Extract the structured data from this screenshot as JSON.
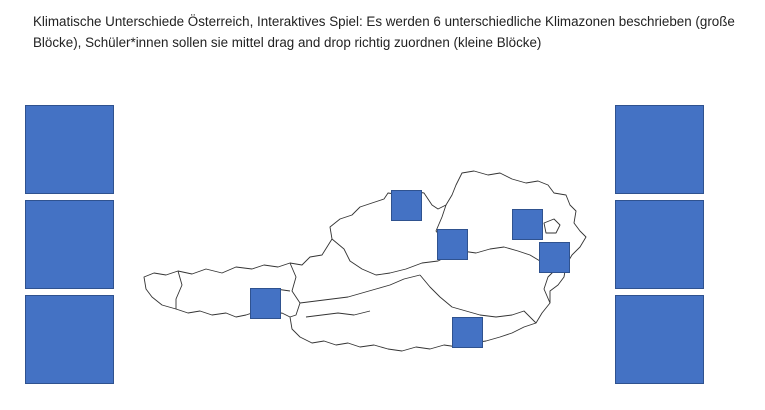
{
  "instruction": {
    "text": "Klimatische Unterschiede Österreich, Interaktives Spiel: Es werden 6 unterschiedliche Klimazonen beschrieben (große Blöcke), Schüler*innen sollen sie mittel drag and drop richtig zuordnen (kleine Blöcke)"
  },
  "colors": {
    "block_fill": "#4472c4",
    "block_border": "#2f528f",
    "map_outline": "#333333"
  },
  "big_blocks": 6,
  "small_blocks": 6
}
